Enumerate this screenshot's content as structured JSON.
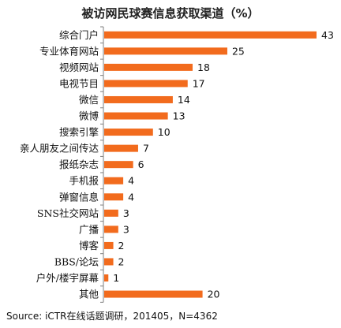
{
  "chart_data": {
    "type": "bar",
    "orientation": "horizontal",
    "title": "被访网民球赛信息获取渠道（%）",
    "categories": [
      "综合门户",
      "专业体育网站",
      "视频网站",
      "电视节目",
      "微信",
      "微博",
      "搜索引擎",
      "亲人朋友之间传达",
      "报纸杂志",
      "手机报",
      "弹窗信息",
      "SNS社交网站",
      "广播",
      "博客",
      "BBS/论坛",
      "户外/楼宇屏幕",
      "其他"
    ],
    "values": [
      43,
      25,
      18,
      17,
      14,
      13,
      10,
      7,
      6,
      4,
      4,
      3,
      3,
      2,
      2,
      1,
      20
    ],
    "xlim": [
      0,
      43
    ],
    "grid": false,
    "bar_color": "#F26B1D",
    "axis_color": "#7F7F7F",
    "source": "Source: iCTR在线话题调研，201405，N=4362"
  }
}
